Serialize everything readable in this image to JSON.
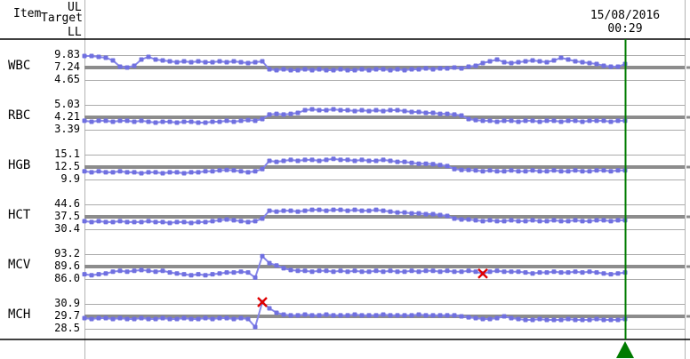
{
  "header": {
    "item_label": "Item",
    "target_label": "Target",
    "ul_label": "UL",
    "ll_label": "LL"
  },
  "cursor": {
    "date": "15/08/2016",
    "time": "00:29",
    "position_index": 76
  },
  "colors": {
    "series_line": "#8585ea",
    "series_marker": "#7070e0",
    "target_line": "#8c8c8c",
    "limit_line": "#ababab",
    "frame_line": "#000000",
    "axis_line": "#b4b4b4",
    "cursor_green": "#007b00",
    "flag_red": "#e00000"
  },
  "chart_data": {
    "type": "line",
    "description": "Multi-panel laboratory QC trend (Levey-Jennings) chart; one panel per analyte with upper limit (UL), target and lower limit (LL) reference lines; green cursor at last run dated 15/08/2016 00:29; red X marks flagged runs.",
    "x_axis": {
      "label": null,
      "n_points": 77
    },
    "legend": null,
    "panels": [
      {
        "item": "WBC",
        "ul": "9.83",
        "target": "7.24",
        "ll": "4.65",
        "flagged_indices": [],
        "values": [
          9.65,
          9.65,
          9.46,
          9.28,
          8.72,
          7.43,
          7.24,
          7.61,
          8.91,
          9.46,
          8.91,
          8.72,
          8.54,
          8.35,
          8.54,
          8.35,
          8.54,
          8.35,
          8.35,
          8.54,
          8.35,
          8.54,
          8.35,
          8.17,
          8.35,
          8.54,
          6.87,
          6.68,
          6.87,
          6.68,
          6.68,
          6.87,
          6.68,
          6.87,
          6.68,
          6.68,
          6.87,
          6.68,
          6.68,
          6.87,
          6.68,
          6.87,
          6.87,
          6.68,
          6.87,
          6.68,
          6.87,
          6.87,
          7.06,
          6.87,
          7.06,
          7.06,
          7.24,
          7.06,
          7.43,
          7.61,
          8.17,
          8.54,
          8.91,
          8.35,
          8.17,
          8.35,
          8.54,
          8.72,
          8.54,
          8.35,
          8.72,
          9.28,
          8.91,
          8.54,
          8.35,
          8.17,
          7.98,
          7.61,
          7.43,
          7.43,
          7.98
        ]
      },
      {
        "item": "RBC",
        "ul": "5.03",
        "target": "4.21",
        "ll": "3.39",
        "flagged_indices": [],
        "values": [
          3.98,
          3.92,
          3.98,
          3.98,
          3.92,
          3.98,
          3.98,
          3.92,
          3.98,
          3.92,
          3.86,
          3.92,
          3.92,
          3.86,
          3.92,
          3.92,
          3.86,
          3.86,
          3.92,
          3.92,
          3.98,
          3.92,
          3.98,
          4.03,
          3.98,
          4.09,
          4.39,
          4.44,
          4.39,
          4.44,
          4.5,
          4.68,
          4.74,
          4.68,
          4.68,
          4.74,
          4.68,
          4.68,
          4.62,
          4.68,
          4.62,
          4.68,
          4.62,
          4.68,
          4.68,
          4.62,
          4.56,
          4.56,
          4.5,
          4.5,
          4.44,
          4.44,
          4.39,
          4.33,
          4.09,
          4.03,
          3.98,
          3.98,
          3.92,
          3.98,
          3.98,
          3.92,
          3.98,
          3.98,
          3.92,
          3.98,
          3.98,
          3.92,
          3.98,
          3.98,
          3.92,
          3.98,
          3.98,
          3.98,
          3.92,
          3.98,
          3.98
        ]
      },
      {
        "item": "HGB",
        "ul": "15.1",
        "target": "12.5",
        "ll": "9.9",
        "flagged_indices": [],
        "values": [
          11.6,
          11.4,
          11.6,
          11.4,
          11.4,
          11.6,
          11.4,
          11.4,
          11.2,
          11.4,
          11.4,
          11.2,
          11.4,
          11.4,
          11.2,
          11.4,
          11.4,
          11.6,
          11.6,
          11.8,
          11.9,
          11.8,
          11.6,
          11.4,
          11.6,
          12.1,
          13.8,
          13.6,
          13.8,
          14.0,
          13.8,
          14.0,
          14.0,
          13.8,
          14.0,
          14.2,
          14.0,
          14.0,
          13.8,
          14.0,
          13.8,
          13.8,
          14.0,
          13.8,
          13.6,
          13.6,
          13.4,
          13.2,
          13.2,
          13.1,
          12.9,
          12.7,
          12.1,
          11.9,
          11.9,
          11.8,
          11.6,
          11.8,
          11.6,
          11.6,
          11.8,
          11.6,
          11.6,
          11.8,
          11.6,
          11.6,
          11.8,
          11.6,
          11.6,
          11.8,
          11.6,
          11.6,
          11.8,
          11.8,
          11.6,
          11.8,
          11.8
        ]
      },
      {
        "item": "HCT",
        "ul": "44.6",
        "target": "37.5",
        "ll": "30.4",
        "flagged_indices": [],
        "values": [
          35.0,
          34.5,
          35.0,
          34.5,
          34.5,
          35.0,
          34.5,
          34.5,
          34.5,
          35.0,
          34.5,
          34.5,
          34.0,
          34.5,
          34.5,
          34.0,
          34.5,
          34.5,
          35.0,
          35.5,
          36.0,
          35.5,
          35.0,
          34.5,
          35.0,
          36.5,
          41.0,
          40.5,
          41.0,
          41.0,
          40.5,
          41.0,
          41.5,
          41.5,
          41.0,
          41.5,
          41.5,
          41.0,
          41.5,
          41.0,
          41.0,
          41.5,
          41.0,
          40.5,
          40.0,
          40.0,
          39.5,
          39.5,
          39.0,
          39.0,
          38.5,
          38.0,
          36.5,
          36.0,
          36.0,
          35.5,
          35.0,
          35.5,
          35.0,
          35.0,
          35.5,
          35.0,
          35.0,
          35.5,
          35.0,
          35.0,
          35.5,
          35.0,
          35.0,
          35.5,
          35.0,
          35.0,
          35.5,
          35.5,
          35.0,
          35.5,
          35.5
        ]
      },
      {
        "item": "MCV",
        "ul": "93.2",
        "target": "89.6",
        "ll": "86.0",
        "flagged_indices": [
          56
        ],
        "values": [
          87.4,
          87.1,
          87.4,
          87.6,
          88.1,
          88.4,
          88.1,
          88.4,
          88.6,
          88.4,
          88.1,
          88.4,
          87.9,
          87.6,
          87.4,
          87.1,
          87.4,
          87.1,
          87.4,
          87.6,
          87.9,
          87.9,
          88.1,
          87.9,
          86.4,
          92.6,
          90.6,
          89.9,
          89.1,
          88.6,
          88.4,
          88.4,
          88.1,
          88.4,
          88.4,
          88.1,
          88.4,
          88.1,
          88.4,
          88.1,
          88.1,
          88.4,
          88.1,
          88.4,
          88.1,
          88.1,
          88.4,
          88.1,
          88.4,
          88.4,
          88.1,
          88.4,
          88.1,
          88.1,
          88.4,
          88.1,
          87.6,
          88.1,
          88.4,
          88.1,
          88.1,
          88.1,
          87.9,
          87.6,
          87.9,
          87.9,
          88.1,
          87.9,
          87.9,
          88.1,
          87.9,
          88.1,
          87.9,
          87.6,
          87.4,
          87.6,
          87.9
        ]
      },
      {
        "item": "MCH",
        "ul": "30.9",
        "target": "29.7",
        "ll": "28.5",
        "flagged_indices": [
          25
        ],
        "values": [
          29.53,
          29.44,
          29.53,
          29.53,
          29.44,
          29.53,
          29.44,
          29.44,
          29.53,
          29.44,
          29.44,
          29.53,
          29.44,
          29.44,
          29.53,
          29.44,
          29.44,
          29.53,
          29.44,
          29.53,
          29.53,
          29.44,
          29.53,
          29.44,
          28.67,
          31.07,
          30.47,
          30.04,
          29.87,
          29.79,
          29.79,
          29.87,
          29.79,
          29.79,
          29.87,
          29.79,
          29.79,
          29.79,
          29.87,
          29.79,
          29.79,
          29.79,
          29.87,
          29.79,
          29.79,
          29.79,
          29.79,
          29.87,
          29.79,
          29.79,
          29.79,
          29.79,
          29.79,
          29.7,
          29.61,
          29.53,
          29.44,
          29.44,
          29.53,
          29.7,
          29.53,
          29.44,
          29.36,
          29.36,
          29.44,
          29.36,
          29.36,
          29.36,
          29.44,
          29.36,
          29.36,
          29.36,
          29.44,
          29.36,
          29.36,
          29.36,
          29.44
        ]
      }
    ]
  }
}
